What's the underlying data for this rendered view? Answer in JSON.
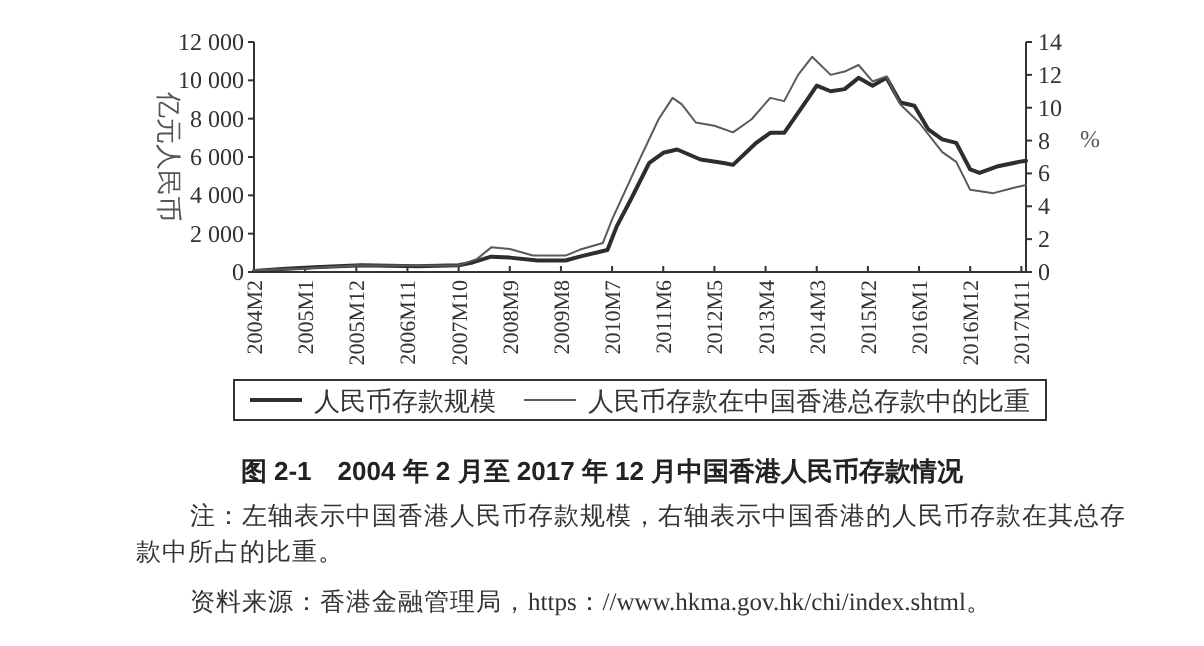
{
  "chart_data": {
    "type": "line",
    "title": "图 2-1　2004 年 2 月至 2017 年 12 月中国香港人民币存款情况",
    "ylabel": "亿元人民币",
    "y2label": "%",
    "annotations": [
      "注：左轴表示中国香港人民币存款规模，右轴表示中国香港的人民币存款在其总存款中所占的比重。",
      "资料来源：香港金融管理局，https：//www.hkma.gov.hk/chi/index.shtml。"
    ],
    "xlim": [
      "2004-02",
      "2017-12"
    ],
    "xticks": [
      {
        "value": "2004-02",
        "label": "2004M2"
      },
      {
        "value": "2005-01",
        "label": "2005M1"
      },
      {
        "value": "2005-12",
        "label": "2005M12"
      },
      {
        "value": "2006-11",
        "label": "2006M11"
      },
      {
        "value": "2007-10",
        "label": "2007M10"
      },
      {
        "value": "2008-09",
        "label": "2008M9"
      },
      {
        "value": "2009-08",
        "label": "2009M8"
      },
      {
        "value": "2010-07",
        "label": "2010M7"
      },
      {
        "value": "2011-06",
        "label": "2011M6"
      },
      {
        "value": "2012-05",
        "label": "2012M5"
      },
      {
        "value": "2013-04",
        "label": "2013M4"
      },
      {
        "value": "2014-03",
        "label": "2014M3"
      },
      {
        "value": "2015-02",
        "label": "2015M2"
      },
      {
        "value": "2016-01",
        "label": "2016M1"
      },
      {
        "value": "2016-12",
        "label": "2016M12"
      },
      {
        "value": "2017-11",
        "label": "2017M11"
      }
    ],
    "ylim": [
      0,
      12000
    ],
    "yticks": [
      0,
      {
        "value": 2000,
        "label": "2 000"
      },
      {
        "value": 4000,
        "label": "4 000"
      },
      {
        "value": 6000,
        "label": "6 000"
      },
      {
        "value": 8000,
        "label": "8 000"
      },
      {
        "value": 10000,
        "label": "10 000"
      },
      {
        "value": 12000,
        "label": "12 000"
      }
    ],
    "y2lim": [
      0,
      14
    ],
    "y2ticks": [
      0,
      2,
      4,
      6,
      8,
      10,
      12,
      14
    ],
    "grid": false,
    "legend": "bottom",
    "marker": "none",
    "line_style": "solid",
    "series": [
      {
        "name": "人民币存款规模",
        "color": "#2e2e2e",
        "x": [
          "2004-02",
          "2004-08",
          "2005-03",
          "2006-01",
          "2007-01",
          "2007-10",
          "2008-01",
          "2008-05",
          "2008-09",
          "2009-03",
          "2009-09",
          "2009-12",
          "2010-06",
          "2010-08",
          "2010-11",
          "2011-03",
          "2011-06",
          "2011-09",
          "2012-02",
          "2012-07",
          "2012-09",
          "2013-02",
          "2013-05",
          "2013-08",
          "2014-01",
          "2014-03",
          "2014-06",
          "2014-09",
          "2014-12",
          "2015-03",
          "2015-06",
          "2015-09",
          "2015-12",
          "2016-03",
          "2016-06",
          "2016-09",
          "2016-12",
          "2017-02",
          "2017-06",
          "2017-11",
          "2017-12"
        ],
        "values": [
          50,
          150,
          250,
          350,
          300,
          350,
          500,
          800,
          750,
          600,
          600,
          800,
          1150,
          2380,
          3770,
          5700,
          6220,
          6390,
          5870,
          5690,
          5590,
          6740,
          7260,
          7260,
          9010,
          9720,
          9430,
          9540,
          10130,
          9720,
          10130,
          8840,
          8670,
          7440,
          6920,
          6740,
          5350,
          5170,
          5520,
          5770,
          5800
        ]
      },
      {
        "name": "人民币存款在中国香港总存款中的比重",
        "color": "#5a5a5a",
        "axis": "y2",
        "x": [
          "2004-02",
          "2004-12",
          "2005-12",
          "2006-12",
          "2007-10",
          "2008-02",
          "2008-05",
          "2008-09",
          "2009-02",
          "2009-09",
          "2009-12",
          "2010-05",
          "2010-07",
          "2011-01",
          "2011-05",
          "2011-08",
          "2011-10",
          "2012-01",
          "2012-05",
          "2012-09",
          "2013-01",
          "2013-05",
          "2013-08",
          "2013-11",
          "2014-02",
          "2014-06",
          "2014-09",
          "2014-12",
          "2015-03",
          "2015-06",
          "2015-09",
          "2016-01",
          "2016-06",
          "2016-09",
          "2016-12",
          "2017-05",
          "2017-09",
          "2017-12"
        ],
        "values": [
          0.1,
          0.2,
          0.4,
          0.4,
          0.4,
          0.8,
          1.5,
          1.4,
          1.0,
          1.0,
          1.35,
          1.76,
          3.2,
          6.9,
          9.3,
          10.6,
          10.2,
          9.1,
          8.9,
          8.5,
          9.3,
          10.6,
          10.4,
          12.0,
          13.1,
          12.0,
          12.2,
          12.6,
          11.6,
          11.9,
          10.2,
          9.1,
          7.3,
          6.7,
          5.0,
          4.8,
          5.1,
          5.3
        ]
      }
    ]
  }
}
